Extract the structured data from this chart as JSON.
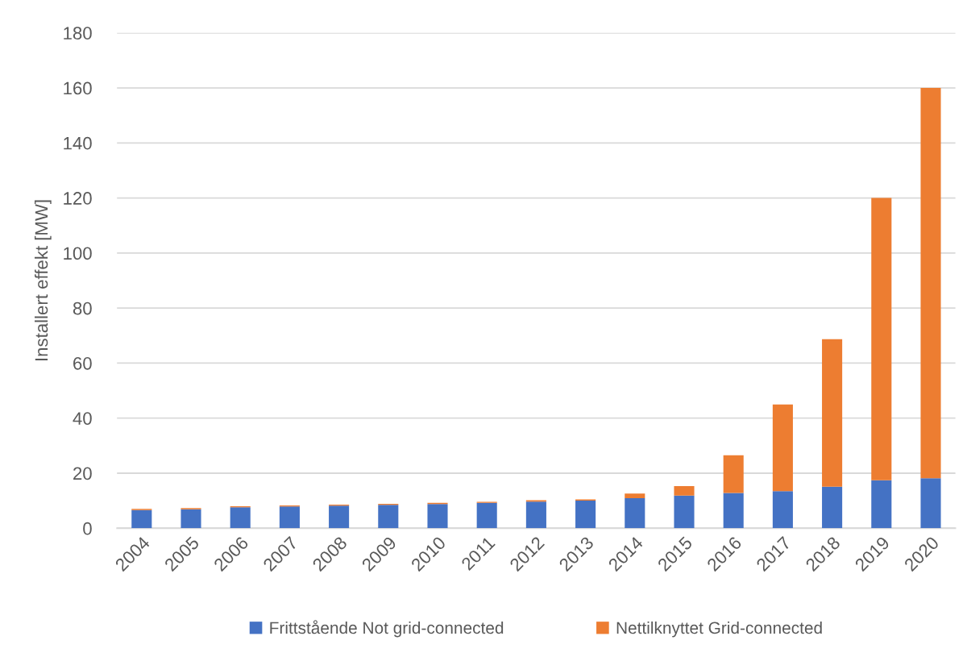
{
  "chart_data": {
    "type": "bar",
    "stacked": true,
    "ylabel": "Installert effekt [MW]",
    "categories": [
      "2004",
      "2005",
      "2006",
      "2007",
      "2008",
      "2009",
      "2010",
      "2011",
      "2012",
      "2013",
      "2014",
      "2015",
      "2016",
      "2017",
      "2018",
      "2019",
      "2020"
    ],
    "series": [
      {
        "name": "Frittstående Not grid-connected",
        "color": "#4472c4",
        "values": [
          6.6,
          6.9,
          7.6,
          7.9,
          8.2,
          8.5,
          8.8,
          9.2,
          9.7,
          10.0,
          10.9,
          11.9,
          12.8,
          13.5,
          15.1,
          17.4,
          18.2
        ]
      },
      {
        "name": "Nettilknyttet Grid-connected",
        "color": "#ed7d31",
        "values": [
          0.4,
          0.4,
          0.4,
          0.4,
          0.4,
          0.4,
          0.4,
          0.4,
          0.5,
          0.5,
          1.7,
          3.4,
          13.7,
          31.5,
          53.6,
          102.6,
          141.8
        ]
      }
    ],
    "ylim": [
      0,
      180
    ],
    "yticks": [
      0,
      20,
      40,
      60,
      80,
      100,
      120,
      140,
      160,
      180
    ],
    "grid": "y",
    "legend": "bottom"
  }
}
